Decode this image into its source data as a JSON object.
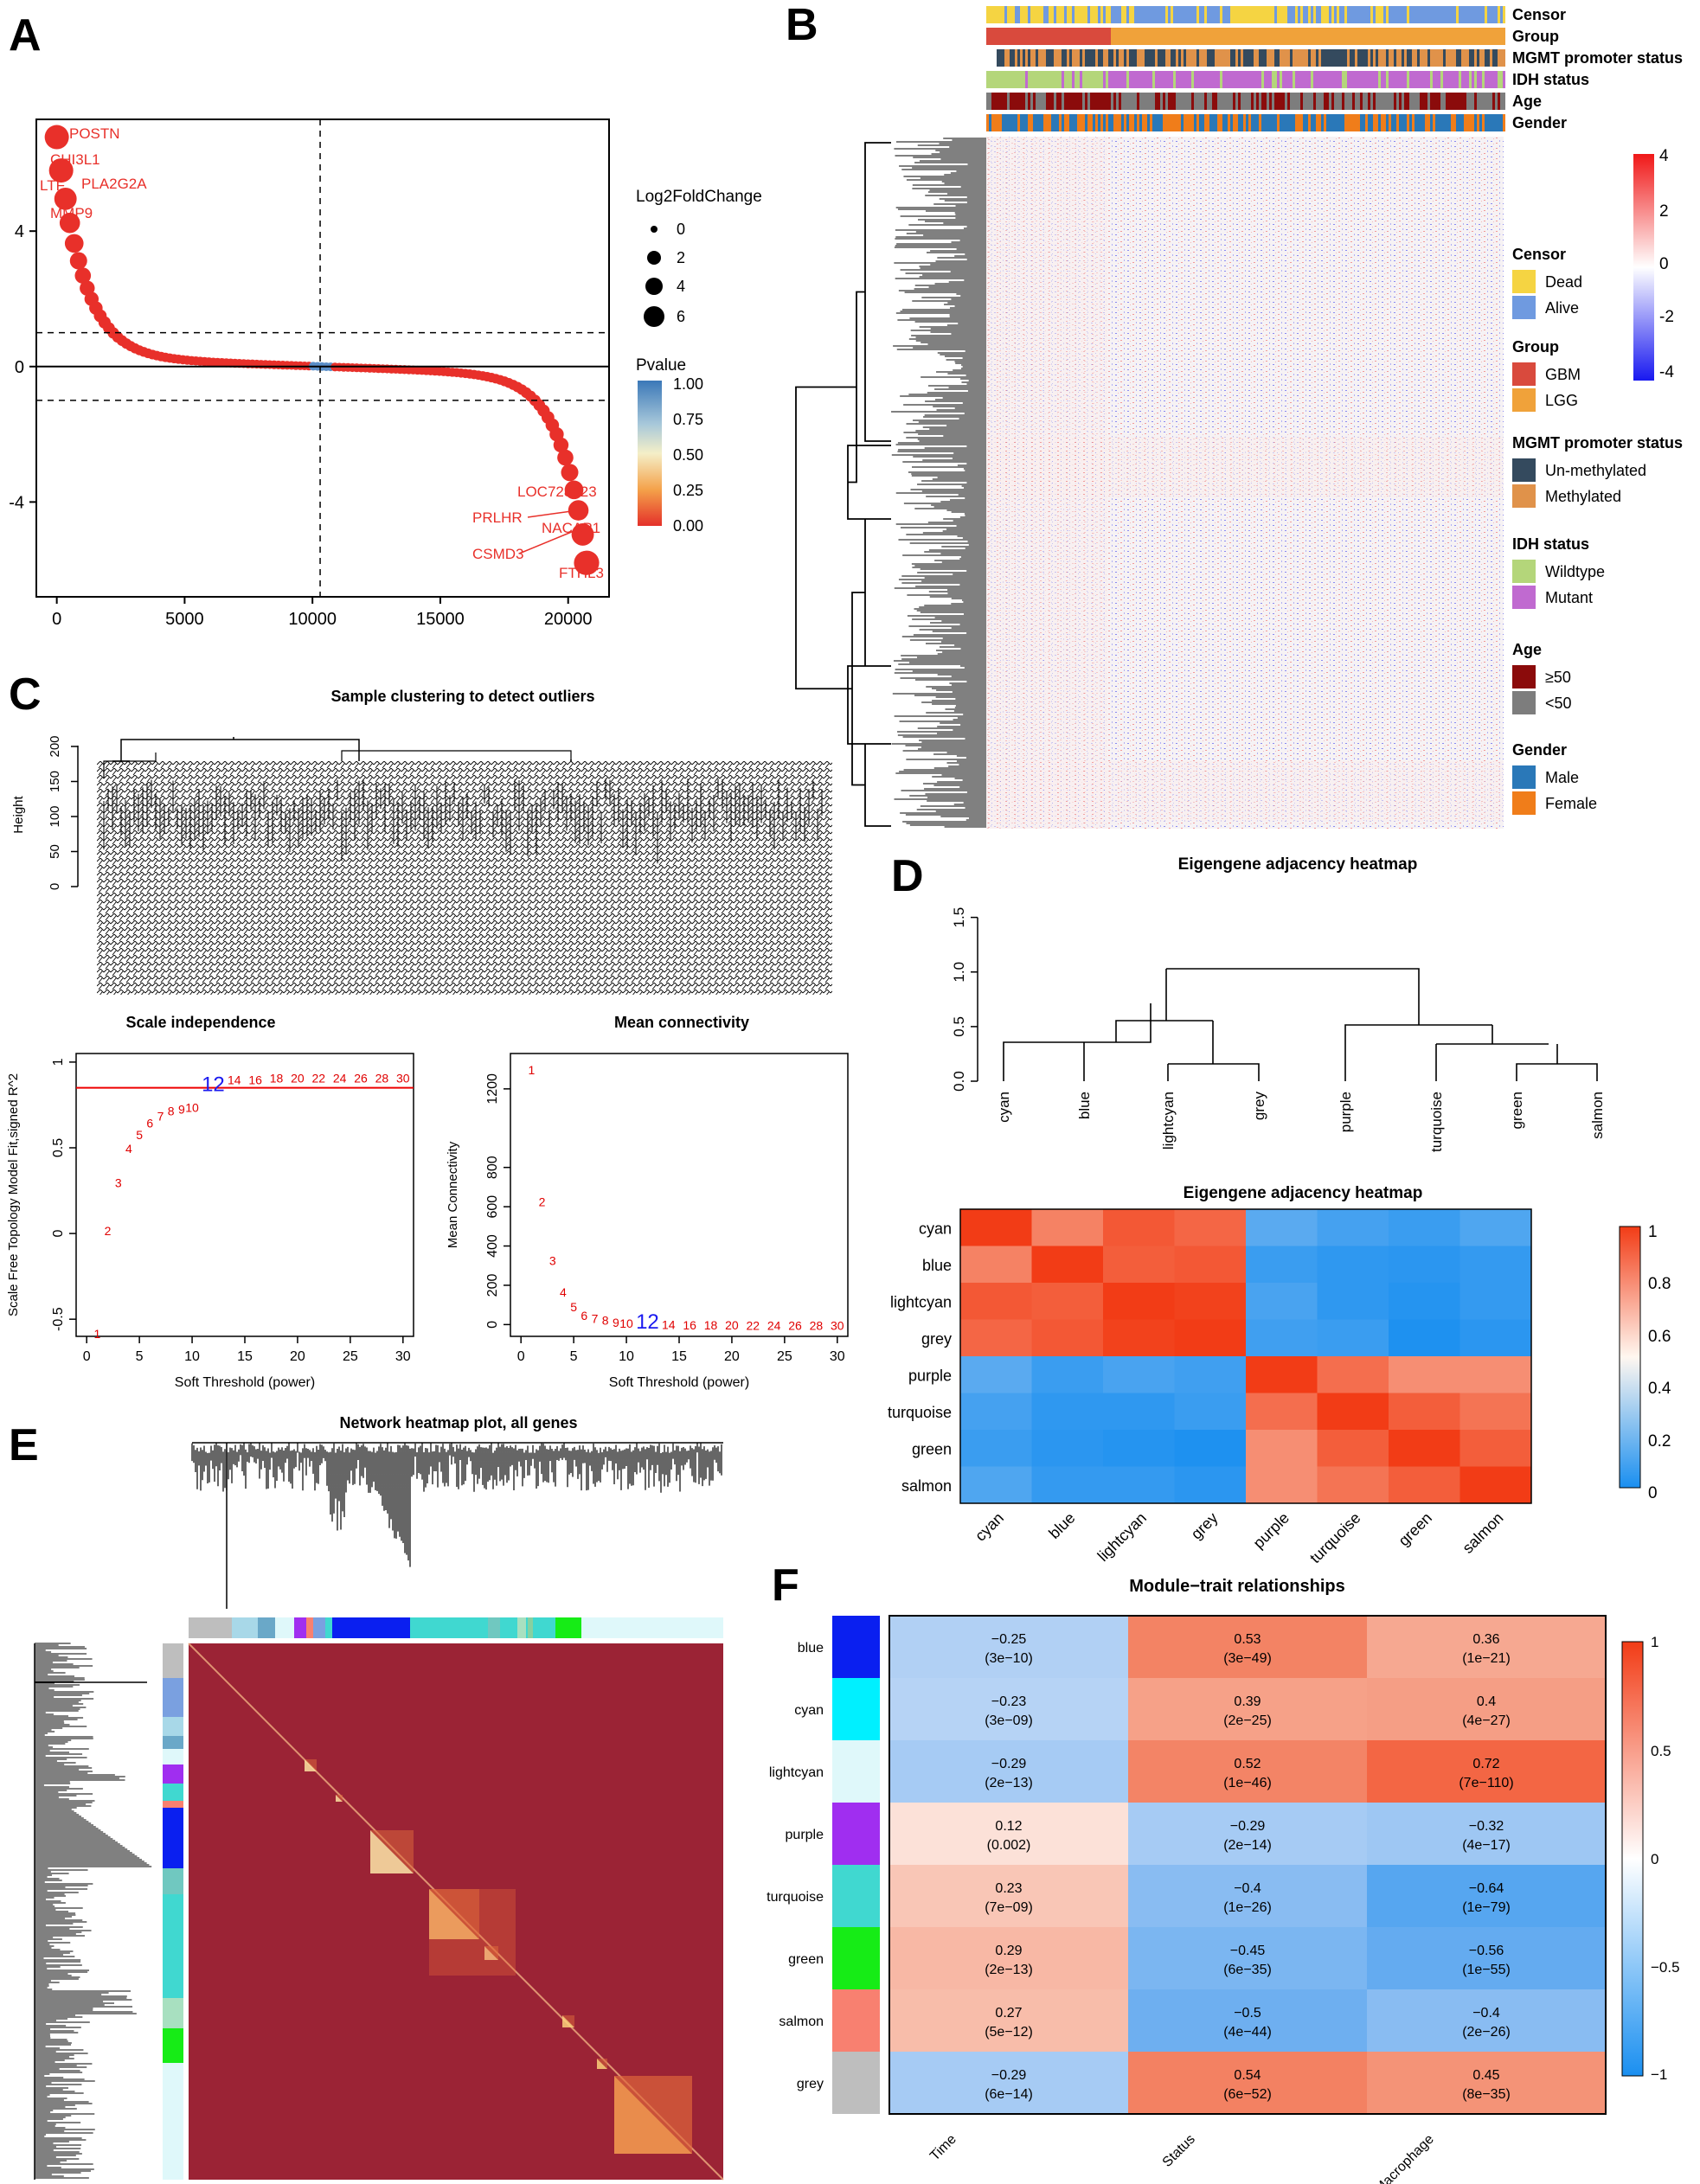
{
  "panels": {
    "a": "A",
    "b": "B",
    "c": "C",
    "d": "D",
    "e": "E",
    "f": "F"
  },
  "chart_data": [
    {
      "id": "A",
      "type": "scatter",
      "x_ticks": [
        0,
        5000,
        10000,
        15000,
        20000
      ],
      "y_ticks": [
        -4,
        0,
        4
      ],
      "xlim": [
        -800,
        21600
      ],
      "ylim": [
        -6.8,
        7.3
      ],
      "hlines": [
        0,
        1,
        -1
      ],
      "vline": 10300,
      "curve": {
        "n": 20800,
        "top": 6.5,
        "bottom": -5.8
      },
      "labels_top": [
        "POSTN",
        "CHI3L1",
        "LTF",
        "PLA2G2A",
        "MMP9"
      ],
      "labels_bottom": [
        "LOC728323",
        "PRLHR",
        "NACAP1",
        "CSMD3",
        "FTHL3"
      ],
      "legend_size_title": "Log2FoldChange",
      "legend_size_values": [
        "0",
        "2",
        "4",
        "6"
      ],
      "legend_color_title": "Pvalue",
      "legend_color_values": [
        "1.00",
        "0.75",
        "0.50",
        "0.25",
        "0.00"
      ]
    },
    {
      "id": "B",
      "type": "heatmap",
      "tracks": [
        "Censor",
        "Group",
        "MGMT promoter status",
        "IDH status",
        "Age",
        "Gender"
      ],
      "colorbar": [
        "4",
        "2",
        "0",
        "-2",
        "-4"
      ],
      "legend": [
        {
          "title": "Censor",
          "items": [
            {
              "label": "Dead",
              "color": "#f5d442"
            },
            {
              "label": "Alive",
              "color": "#6f9ae0"
            }
          ]
        },
        {
          "title": "Group",
          "items": [
            {
              "label": "GBM",
              "color": "#d94a3d"
            },
            {
              "label": "LGG",
              "color": "#f0a23a"
            }
          ]
        },
        {
          "title": "MGMT promoter status",
          "items": [
            {
              "label": "Un-methylated",
              "color": "#344a5e"
            },
            {
              "label": "Methylated",
              "color": "#e0924a"
            }
          ]
        },
        {
          "title": "IDH status",
          "items": [
            {
              "label": "Wildtype",
              "color": "#b4d67a"
            },
            {
              "label": "Mutant",
              "color": "#c06ad0"
            }
          ]
        },
        {
          "title": "Age",
          "items": [
            {
              "label": "≥50",
              "color": "#8b0b0b"
            },
            {
              "label": "<50",
              "color": "#7d7d7d"
            }
          ]
        },
        {
          "title": "Gender",
          "items": [
            {
              "label": "Male",
              "color": "#2a78b8"
            },
            {
              "label": "Female",
              "color": "#f07d1a"
            }
          ]
        }
      ]
    },
    {
      "id": "C1",
      "type": "dendrogram",
      "title": "Sample clustering to detect outliers",
      "ylabel": "Height",
      "y_ticks": [
        0,
        50,
        100,
        150,
        200
      ]
    },
    {
      "id": "C2",
      "type": "scatter",
      "title": "Scale independence",
      "xlabel": "Soft Threshold (power)",
      "ylabel": "Scale Free Topology Model Fit,signed R^2",
      "x_ticks": [
        0,
        5,
        10,
        15,
        20,
        25,
        30
      ],
      "y_ticks": [
        -0.5,
        0,
        0.5,
        1
      ],
      "xlim": [
        -1,
        31
      ],
      "ylim": [
        -0.6,
        1.05
      ],
      "hline": 0.85,
      "points": [
        [
          1,
          -0.58
        ],
        [
          2,
          0.02
        ],
        [
          3,
          0.3
        ],
        [
          4,
          0.5
        ],
        [
          5,
          0.58
        ],
        [
          6,
          0.65
        ],
        [
          7,
          0.69
        ],
        [
          8,
          0.72
        ],
        [
          9,
          0.73
        ],
        [
          10,
          0.74
        ],
        [
          12,
          0.86
        ],
        [
          14,
          0.9
        ],
        [
          16,
          0.9
        ],
        [
          18,
          0.91
        ],
        [
          20,
          0.91
        ],
        [
          22,
          0.91
        ],
        [
          24,
          0.91
        ],
        [
          26,
          0.91
        ],
        [
          28,
          0.91
        ],
        [
          30,
          0.91
        ]
      ],
      "highlight": 12
    },
    {
      "id": "C3",
      "type": "scatter",
      "title": "Mean connectivity",
      "xlabel": "Soft Threshold (power)",
      "ylabel": "Mean Connectivity",
      "x_ticks": [
        0,
        5,
        10,
        15,
        20,
        25,
        30
      ],
      "y_ticks": [
        0,
        200,
        400,
        600,
        800,
        1200
      ],
      "xlim": [
        -1,
        31
      ],
      "ylim": [
        -60,
        1380
      ],
      "points": [
        [
          1,
          1300
        ],
        [
          2,
          630
        ],
        [
          3,
          330
        ],
        [
          4,
          170
        ],
        [
          5,
          95
        ],
        [
          6,
          50
        ],
        [
          7,
          35
        ],
        [
          8,
          25
        ],
        [
          9,
          15
        ],
        [
          10,
          10
        ],
        [
          12,
          5
        ],
        [
          14,
          3
        ],
        [
          16,
          2
        ],
        [
          18,
          1
        ],
        [
          20,
          1
        ],
        [
          22,
          0
        ],
        [
          24,
          0
        ],
        [
          26,
          0
        ],
        [
          28,
          0
        ],
        [
          30,
          0
        ]
      ],
      "highlight": 12
    },
    {
      "id": "D1",
      "type": "dendrogram",
      "title": "Eigengene adjacency heatmap",
      "y_ticks": [
        0.0,
        0.5,
        1.0,
        1.5
      ],
      "leaves": [
        "cyan",
        "blue",
        "lightcyan",
        "grey",
        "purple",
        "turquoise",
        "green",
        "salmon"
      ]
    },
    {
      "id": "D2",
      "type": "heatmap",
      "title": "Eigengene adjacency heatmap",
      "rows": [
        "cyan",
        "blue",
        "lightcyan",
        "grey",
        "purple",
        "turquoise",
        "green",
        "salmon"
      ],
      "cols": [
        "cyan",
        "blue",
        "lightcyan",
        "grey",
        "purple",
        "turquoise",
        "green",
        "salmon"
      ],
      "values": [
        [
          1.0,
          0.75,
          0.9,
          0.85,
          0.3,
          0.2,
          0.15,
          0.25
        ],
        [
          0.75,
          1.0,
          0.88,
          0.9,
          0.15,
          0.1,
          0.08,
          0.12
        ],
        [
          0.9,
          0.88,
          1.0,
          0.98,
          0.22,
          0.1,
          0.05,
          0.12
        ],
        [
          0.85,
          0.9,
          0.98,
          1.0,
          0.18,
          0.15,
          0.02,
          0.08
        ],
        [
          0.3,
          0.15,
          0.22,
          0.18,
          1.0,
          0.82,
          0.72,
          0.72
        ],
        [
          0.2,
          0.1,
          0.1,
          0.15,
          0.82,
          1.0,
          0.88,
          0.8
        ],
        [
          0.15,
          0.08,
          0.05,
          0.02,
          0.72,
          0.88,
          1.0,
          0.88
        ],
        [
          0.25,
          0.12,
          0.12,
          0.08,
          0.72,
          0.8,
          0.88,
          1.0
        ]
      ],
      "colorbar": [
        "1",
        "0.8",
        "0.6",
        "0.4",
        "0.2",
        "0"
      ]
    },
    {
      "id": "E",
      "type": "heatmap",
      "title": "Network heatmap plot, all genes"
    },
    {
      "id": "F",
      "type": "heatmap",
      "title": "Module−trait relationships",
      "rows": [
        "blue",
        "cyan",
        "lightcyan",
        "purple",
        "turquoise",
        "green",
        "salmon",
        "grey"
      ],
      "cols": [
        "Time",
        "Status",
        "Macrophage"
      ],
      "values": [
        [
          -0.25,
          0.53,
          0.36
        ],
        [
          -0.23,
          0.39,
          0.4
        ],
        [
          -0.29,
          0.52,
          0.72
        ],
        [
          0.12,
          -0.29,
          -0.32
        ],
        [
          0.23,
          -0.4,
          -0.64
        ],
        [
          0.29,
          -0.45,
          -0.56
        ],
        [
          0.27,
          -0.5,
          -0.4
        ],
        [
          -0.29,
          0.54,
          0.45
        ]
      ],
      "value_labels": [
        [
          "−0.25",
          "0.53",
          "0.36"
        ],
        [
          "−0.23",
          "0.39",
          "0.4"
        ],
        [
          "−0.29",
          "0.52",
          "0.72"
        ],
        [
          "0.12",
          "−0.29",
          "−0.32"
        ],
        [
          "0.23",
          "−0.4",
          "−0.64"
        ],
        [
          "0.29",
          "−0.45",
          "−0.56"
        ],
        [
          "0.27",
          "−0.5",
          "−0.4"
        ],
        [
          "−0.29",
          "0.54",
          "0.45"
        ]
      ],
      "pvalues": [
        [
          "(3e−10)",
          "(3e−49)",
          "(1e−21)"
        ],
        [
          "(3e−09)",
          "(2e−25)",
          "(4e−27)"
        ],
        [
          "(2e−13)",
          "(1e−46)",
          "(7e−110)"
        ],
        [
          "(0.002)",
          "(2e−14)",
          "(4e−17)"
        ],
        [
          "(7e−09)",
          "(1e−26)",
          "(1e−79)"
        ],
        [
          "(2e−13)",
          "(6e−35)",
          "(1e−55)"
        ],
        [
          "(5e−12)",
          "(4e−44)",
          "(2e−26)"
        ],
        [
          "(6e−14)",
          "(6e−52)",
          "(8e−35)"
        ]
      ],
      "colorbar": [
        "1",
        "0.5",
        "0",
        "−0.5",
        "−1"
      ]
    }
  ],
  "colors": {
    "blue": "#0a1ff0",
    "cyan": "#00f0ff",
    "lightcyan": "#dff8fa",
    "purple": "#a02ef0",
    "turquoise": "#40d8d0",
    "green": "#16ec16",
    "salmon": "#f88070",
    "grey": "#bebebe",
    "red_curve": "#e8302a",
    "adj_high": "#f23c16",
    "adj_low": "#1a8ff0"
  }
}
